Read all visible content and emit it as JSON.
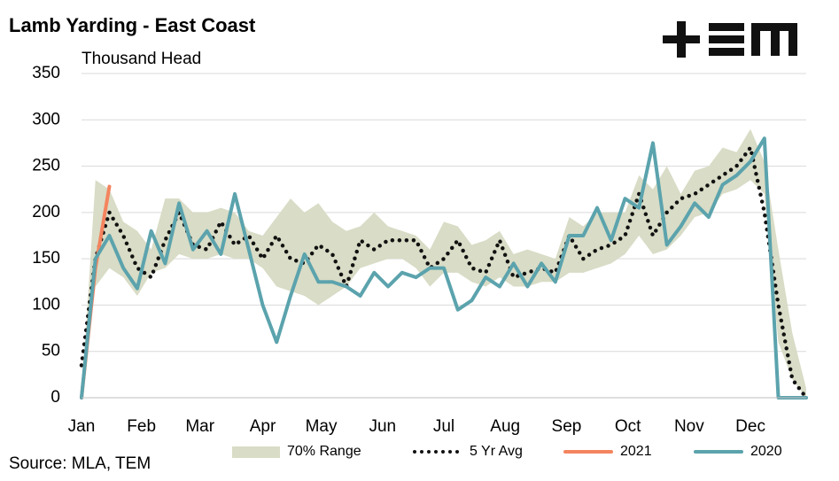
{
  "chart_data": {
    "type": "line",
    "title": "Lamb Yarding - East Coast",
    "subtitle": "Thousand Head",
    "source": "Source: MLA, TEM",
    "xlim": [
      0,
      52
    ],
    "xticks": [
      {
        "value": 0,
        "label": "Jan"
      },
      {
        "value": 4.3,
        "label": "Feb"
      },
      {
        "value": 8.5,
        "label": "Mar"
      },
      {
        "value": 13,
        "label": "Apr"
      },
      {
        "value": 17.2,
        "label": "May"
      },
      {
        "value": 21.6,
        "label": "Jun"
      },
      {
        "value": 26,
        "label": "Jul"
      },
      {
        "value": 30.4,
        "label": "Aug"
      },
      {
        "value": 34.8,
        "label": "Sep"
      },
      {
        "value": 39.2,
        "label": "Oct"
      },
      {
        "value": 43.6,
        "label": "Nov"
      },
      {
        "value": 48,
        "label": "Dec"
      }
    ],
    "ylim": [
      0,
      350
    ],
    "yticks": [
      0,
      50,
      100,
      150,
      200,
      250,
      300,
      350
    ],
    "grid": true,
    "x": [
      0,
      1,
      2,
      3,
      4,
      5,
      6,
      7,
      8,
      9,
      10,
      11,
      12,
      13,
      14,
      15,
      16,
      17,
      18,
      19,
      20,
      21,
      22,
      23,
      24,
      25,
      26,
      27,
      28,
      29,
      30,
      31,
      32,
      33,
      34,
      35,
      36,
      37,
      38,
      39,
      40,
      41,
      42,
      43,
      44,
      45,
      46,
      47,
      48,
      49,
      50,
      51,
      52
    ],
    "series": [
      {
        "name": "70% Range",
        "style": "band",
        "color": "#d9dcc6",
        "high": [
          0,
          235,
          225,
          190,
          180,
          160,
          215,
          215,
          200,
          200,
          205,
          200,
          180,
          175,
          195,
          215,
          200,
          210,
          190,
          180,
          185,
          200,
          185,
          180,
          175,
          160,
          190,
          185,
          165,
          170,
          180,
          155,
          160,
          155,
          150,
          195,
          185,
          200,
          200,
          200,
          240,
          225,
          250,
          220,
          245,
          250,
          270,
          265,
          290,
          255,
          160,
          70,
          10
        ],
        "low": [
          0,
          120,
          140,
          130,
          110,
          135,
          140,
          155,
          150,
          150,
          155,
          150,
          150,
          140,
          120,
          115,
          110,
          100,
          110,
          120,
          140,
          145,
          150,
          150,
          140,
          120,
          135,
          135,
          125,
          120,
          130,
          120,
          120,
          125,
          125,
          135,
          135,
          140,
          145,
          155,
          175,
          155,
          160,
          175,
          195,
          200,
          220,
          225,
          235,
          220,
          60,
          20,
          0
        ]
      },
      {
        "name": "5 Yr Avg",
        "style": "dotted",
        "color": "#111111",
        "values": [
          35,
          150,
          200,
          175,
          140,
          130,
          170,
          200,
          165,
          160,
          190,
          165,
          175,
          150,
          175,
          150,
          145,
          165,
          155,
          120,
          170,
          160,
          170,
          170,
          170,
          140,
          150,
          170,
          140,
          135,
          170,
          130,
          135,
          140,
          135,
          175,
          150,
          160,
          165,
          175,
          220,
          175,
          200,
          215,
          220,
          230,
          240,
          250,
          270,
          200,
          100,
          20,
          0
        ]
      },
      {
        "name": "2021",
        "style": "solid",
        "color": "#f4845f",
        "values": [
          0,
          140,
          228,
          null,
          null,
          null,
          null,
          null,
          null,
          null,
          null,
          null,
          null,
          null,
          null,
          null,
          null,
          null,
          null,
          null,
          null,
          null,
          null,
          null,
          null,
          null,
          null,
          null,
          null,
          null,
          null,
          null,
          null,
          null,
          null,
          null,
          null,
          null,
          null,
          null,
          null,
          null,
          null,
          null,
          null,
          null,
          null,
          null,
          null,
          null,
          null,
          null,
          null
        ]
      },
      {
        "name": "2020",
        "style": "solid",
        "color": "#5ba3ad",
        "values": [
          0,
          150,
          175,
          140,
          118,
          180,
          145,
          210,
          160,
          180,
          155,
          220,
          160,
          100,
          60,
          110,
          155,
          125,
          125,
          120,
          110,
          135,
          120,
          135,
          130,
          140,
          140,
          95,
          105,
          130,
          120,
          145,
          120,
          145,
          125,
          175,
          175,
          205,
          170,
          215,
          205,
          275,
          165,
          185,
          210,
          195,
          230,
          240,
          255,
          280,
          0,
          0,
          0
        ]
      }
    ]
  }
}
